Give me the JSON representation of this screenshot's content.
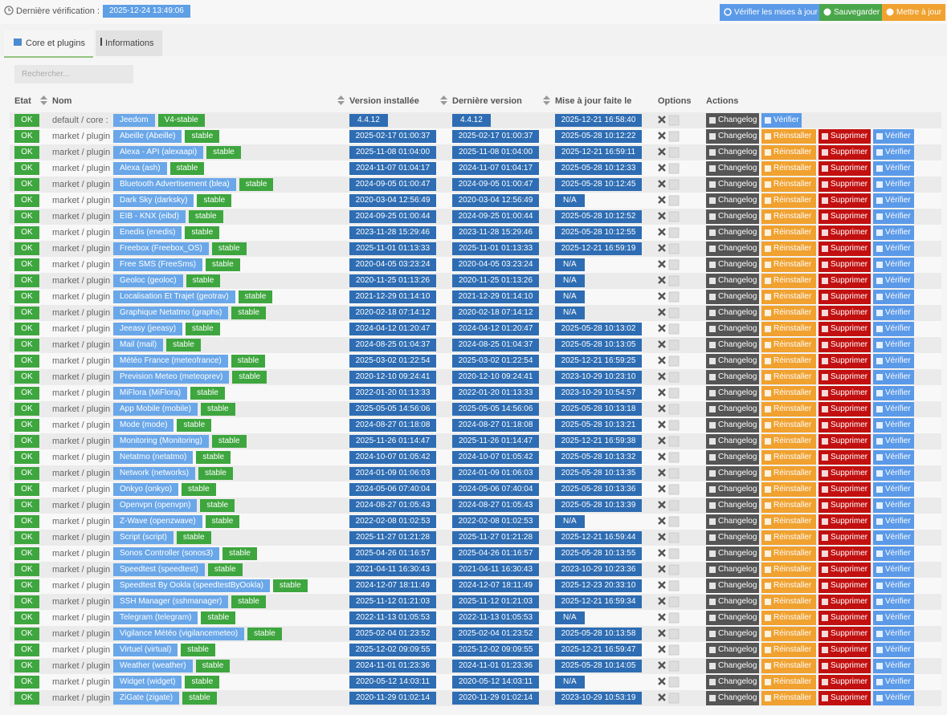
{
  "header": {
    "last_check_label": "Dernière vérification :",
    "last_check": "2025-12-24 13:49:06",
    "buttons": [
      "Vérifier les mises à jour",
      "Sauvegarder",
      "Mettre à jour"
    ]
  },
  "tabs": [
    "Core et plugins",
    "Informations"
  ],
  "search_placeholder": "Rechercher...",
  "table": {
    "columns": [
      "Etat",
      "Nom",
      "Version installée",
      "Dernière version",
      "Mise à jour faite le",
      "Options",
      "Actions"
    ],
    "rows": [
      [
        "OK",
        "default / core :",
        "Jeedom",
        "V4-stable",
        "4.4.12",
        "4.4.12",
        "2025-12-21 16:58:40"
      ],
      [
        "OK",
        "market / plugin :",
        "Abeille (Abeille)",
        "stable",
        "2025-02-17 01:00:37",
        "2025-02-17 01:00:37",
        "2025-05-28 10:12:22"
      ],
      [
        "OK",
        "market / plugin :",
        "Alexa - API (alexaapi)",
        "stable",
        "2025-11-08 01:04:00",
        "2025-11-08 01:04:00",
        "2025-12-21 16:59:11"
      ],
      [
        "OK",
        "market / plugin :",
        "Alexa (ash)",
        "stable",
        "2024-11-07 01:04:17",
        "2024-11-07 01:04:17",
        "2025-05-28 10:12:33"
      ],
      [
        "OK",
        "market / plugin :",
        "Bluetooth Advertisement (blea)",
        "stable",
        "2024-09-05 01:00:47",
        "2024-09-05 01:00:47",
        "2025-05-28 10:12:45"
      ],
      [
        "OK",
        "market / plugin :",
        "Dark Sky (darksky)",
        "stable",
        "2020-03-04 12:56:49",
        "2020-03-04 12:56:49",
        "N/A"
      ],
      [
        "OK",
        "market / plugin :",
        "EIB - KNX (eibd)",
        "stable",
        "2024-09-25 01:00:44",
        "2024-09-25 01:00:44",
        "2025-05-28 10:12:52"
      ],
      [
        "OK",
        "market / plugin :",
        "Enedis (enedis)",
        "stable",
        "2023-11-28 15:29:46",
        "2023-11-28 15:29:46",
        "2025-05-28 10:12:55"
      ],
      [
        "OK",
        "market / plugin :",
        "Freebox (Freebox_OS)",
        "stable",
        "2025-11-01 01:13:33",
        "2025-11-01 01:13:33",
        "2025-12-21 16:59:19"
      ],
      [
        "OK",
        "market / plugin :",
        "Free SMS (FreeSms)",
        "stable",
        "2020-04-05 03:23:24",
        "2020-04-05 03:23:24",
        "N/A"
      ],
      [
        "OK",
        "market / plugin :",
        "Geoloc (geoloc)",
        "stable",
        "2020-11-25 01:13:26",
        "2020-11-25 01:13:26",
        "N/A"
      ],
      [
        "OK",
        "market / plugin :",
        "Localisation Et Trajet (geotrav)",
        "stable",
        "2021-12-29 01:14:10",
        "2021-12-29 01:14:10",
        "N/A"
      ],
      [
        "OK",
        "market / plugin :",
        "Graphique Netatmo (graphs)",
        "stable",
        "2020-02-18 07:14:12",
        "2020-02-18 07:14:12",
        "N/A"
      ],
      [
        "OK",
        "market / plugin :",
        "Jeeasy (jeeasy)",
        "stable",
        "2024-04-12 01:20:47",
        "2024-04-12 01:20:47",
        "2025-05-28 10:13:02"
      ],
      [
        "OK",
        "market / plugin :",
        "Mail (mail)",
        "stable",
        "2024-08-25 01:04:37",
        "2024-08-25 01:04:37",
        "2025-05-28 10:13:05"
      ],
      [
        "OK",
        "market / plugin :",
        "Météo France (meteofrance)",
        "stable",
        "2025-03-02 01:22:54",
        "2025-03-02 01:22:54",
        "2025-12-21 16:59:25"
      ],
      [
        "OK",
        "market / plugin :",
        "Prevision Meteo (meteoprev)",
        "stable",
        "2020-12-10 09:24:41",
        "2020-12-10 09:24:41",
        "2023-10-29 10:23:10"
      ],
      [
        "OK",
        "market / plugin :",
        "MiFlora (MiFlora)",
        "stable",
        "2022-01-20 01:13:33",
        "2022-01-20 01:13:33",
        "2023-10-29 10:54:57"
      ],
      [
        "OK",
        "market / plugin :",
        "App Mobile (mobile)",
        "stable",
        "2025-05-05 14:56:06",
        "2025-05-05 14:56:06",
        "2025-05-28 10:13:18"
      ],
      [
        "OK",
        "market / plugin :",
        "Mode (mode)",
        "stable",
        "2024-08-27 01:18:08",
        "2024-08-27 01:18:08",
        "2025-05-28 10:13:21"
      ],
      [
        "OK",
        "market / plugin :",
        "Monitoring (Monitoring)",
        "stable",
        "2025-11-26 01:14:47",
        "2025-11-26 01:14:47",
        "2025-12-21 16:59:38"
      ],
      [
        "OK",
        "market / plugin :",
        "Netatmo (netatmo)",
        "stable",
        "2024-10-07 01:05:42",
        "2024-10-07 01:05:42",
        "2025-05-28 10:13:32"
      ],
      [
        "OK",
        "market / plugin :",
        "Network (networks)",
        "stable",
        "2024-01-09 01:06:03",
        "2024-01-09 01:06:03",
        "2025-05-28 10:13:35"
      ],
      [
        "OK",
        "market / plugin :",
        "Onkyo (onkyo)",
        "stable",
        "2024-05-06 07:40:04",
        "2024-05-06 07:40:04",
        "2025-05-28 10:13:36"
      ],
      [
        "OK",
        "market / plugin :",
        "Openvpn (openvpn)",
        "stable",
        "2024-08-27 01:05:43",
        "2024-08-27 01:05:43",
        "2025-05-28 10:13:39"
      ],
      [
        "OK",
        "market / plugin :",
        "Z-Wave (openzwave)",
        "stable",
        "2022-02-08 01:02:53",
        "2022-02-08 01:02:53",
        "N/A"
      ],
      [
        "OK",
        "market / plugin :",
        "Script (script)",
        "stable",
        "2025-11-27 01:21:28",
        "2025-11-27 01:21:28",
        "2025-12-21 16:59:44"
      ],
      [
        "OK",
        "market / plugin :",
        "Sonos Controller (sonos3)",
        "stable",
        "2025-04-26 01:16:57",
        "2025-04-26 01:16:57",
        "2025-05-28 10:13:55"
      ],
      [
        "OK",
        "market / plugin :",
        "Speedtest (speedtest)",
        "stable",
        "2021-04-11 16:30:43",
        "2021-04-11 16:30:43",
        "2023-10-29 10:23:36"
      ],
      [
        "OK",
        "market / plugin :",
        "Speedtest By Ookla (speedtestByOokla)",
        "stable",
        "2024-12-07 18:11:49",
        "2024-12-07 18:11:49",
        "2025-12-23 20:33:10"
      ],
      [
        "OK",
        "market / plugin :",
        "SSH Manager (sshmanager)",
        "stable",
        "2025-11-12 01:21:03",
        "2025-11-12 01:21:03",
        "2025-12-21 16:59:34"
      ],
      [
        "OK",
        "market / plugin :",
        "Telegram (telegram)",
        "stable",
        "2022-11-13 01:05:53",
        "2022-11-13 01:05:53",
        "N/A"
      ],
      [
        "OK",
        "market / plugin :",
        "Vigilance Météo (vigilancemeteo)",
        "stable",
        "2025-02-04 01:23:52",
        "2025-02-04 01:23:52",
        "2025-05-28 10:13:58"
      ],
      [
        "OK",
        "market / plugin :",
        "Virtuel (virtual)",
        "stable",
        "2025-12-02 09:09:55",
        "2025-12-02 09:09:55",
        "2025-12-21 16:59:47"
      ],
      [
        "OK",
        "market / plugin :",
        "Weather (weather)",
        "stable",
        "2024-11-01 01:23:36",
        "2024-11-01 01:23:36",
        "2025-05-28 10:14:05"
      ],
      [
        "OK",
        "market / plugin :",
        "Widget (widget)",
        "stable",
        "2020-05-12 14:03:11",
        "2020-05-12 14:03:11",
        "N/A"
      ],
      [
        "OK",
        "market / plugin :",
        "ZiGate (zigate)",
        "stable",
        "2020-11-29 01:02:14",
        "2020-11-29 01:02:14",
        "2023-10-29 10:53:19"
      ]
    ]
  },
  "actions": [
    "Changelog",
    "Réinstaller",
    "Supprimer",
    "Vérifier"
  ]
}
